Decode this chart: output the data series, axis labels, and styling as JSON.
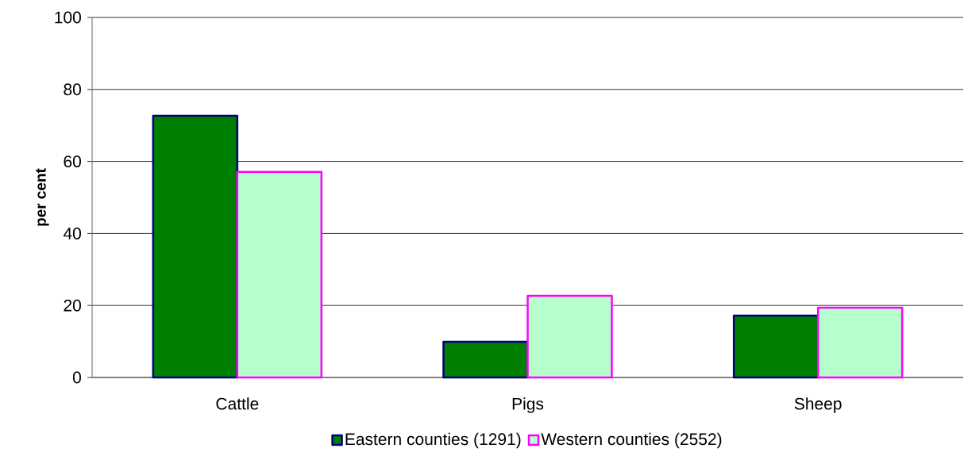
{
  "chart_data": {
    "type": "bar",
    "ylabel": "per cent",
    "categories": [
      "Cattle",
      "Pigs",
      "Sheep"
    ],
    "series": [
      {
        "name": "Eastern counties (1291)",
        "color": "#008000",
        "values": [
          72.7,
          9.9,
          17.2
        ]
      },
      {
        "name": "Western counties (2552)",
        "color": "#b6ffcc",
        "values": [
          57.1,
          22.7,
          19.4
        ]
      }
    ],
    "ylim": [
      0,
      100
    ],
    "yticks": [
      0,
      20,
      40,
      60,
      80,
      100
    ],
    "grid": "y",
    "legend": "bottom"
  }
}
